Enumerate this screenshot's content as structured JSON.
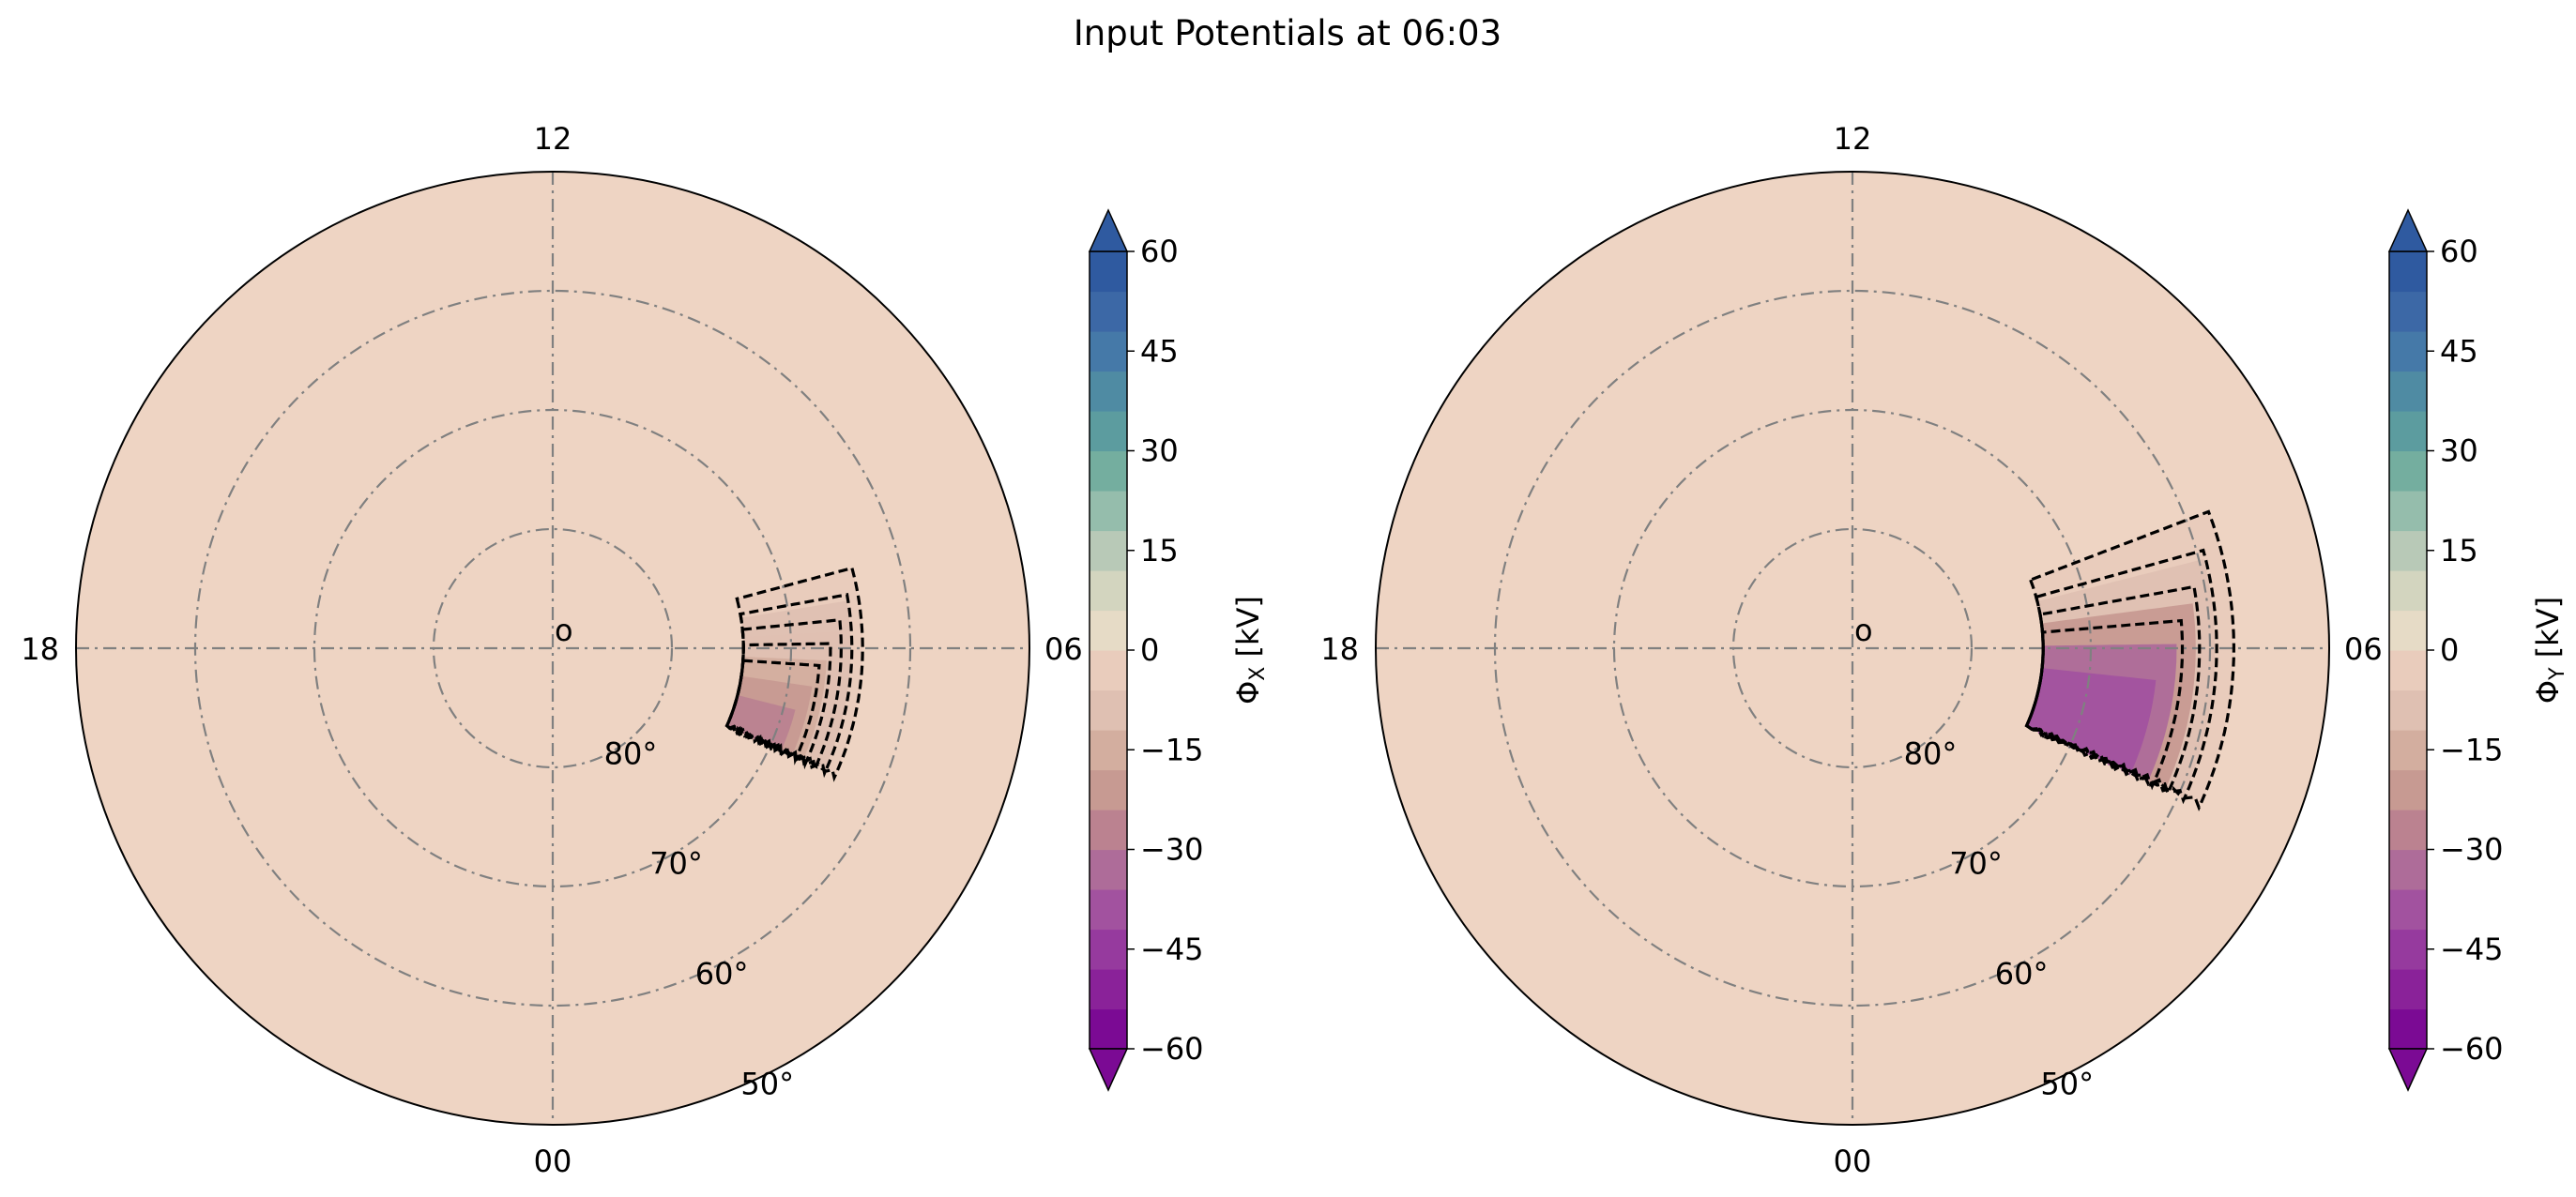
{
  "figure": {
    "title": "Input Potentials at 06:03"
  },
  "colors": {
    "background_potential": "#eed4c3",
    "cmap_negative": [
      "#7b0a94",
      "#8a2299",
      "#963a9e",
      "#a2529f",
      "#ae6c99",
      "#bb8290",
      "#c79a92",
      "#d3ae9f",
      "#dfc0b2",
      "#e9ccbc"
    ],
    "cmap_positive": [
      "#e6dbc6",
      "#d3d5bf",
      "#b8c9b7",
      "#95bdac",
      "#74ae9f",
      "#5c9c9f",
      "#4f8ba3",
      "#4579a8",
      "#3c68a6",
      "#2f5aa0"
    ]
  },
  "chart_data": [
    {
      "type": "polar-contour",
      "id": "left",
      "mlt_labels": [
        "12",
        "18",
        "06",
        "00"
      ],
      "colat_labels": [
        "80°",
        "70°",
        "60°",
        "50°"
      ],
      "lat_rings": [
        80,
        70,
        60,
        50
      ],
      "lat_min": 50,
      "pole_marker": "o",
      "colorbar": {
        "label": "Φ_X [kV]",
        "label_main": "Φ",
        "label_sub": "X",
        "label_unit": " [kV]",
        "range": [
          -60,
          60
        ],
        "step": 5,
        "ticks": [
          "60",
          "45",
          "30",
          "15",
          "0",
          "−15",
          "−30",
          "−45",
          "−60"
        ],
        "extend": "both"
      },
      "contour_levels_kV": [
        -5,
        -10,
        -15,
        -20,
        -25
      ],
      "region": {
        "mlt_range": [
          17.0,
          19.6
        ],
        "lat_range": [
          64,
          74
        ],
        "min_potential_kV": -25
      }
    },
    {
      "type": "polar-contour",
      "id": "right",
      "mlt_labels": [
        "12",
        "18",
        "06",
        "00"
      ],
      "colat_labels": [
        "80°",
        "70°",
        "60°",
        "50°"
      ],
      "lat_rings": [
        80,
        70,
        60,
        50
      ],
      "lat_min": 50,
      "pole_marker": "o",
      "colorbar": {
        "label": "Φ_Y [kV]",
        "label_main": "Φ",
        "label_sub": "Y",
        "label_unit": " [kV]",
        "range": [
          -60,
          60
        ],
        "step": 5,
        "ticks": [
          "60",
          "45",
          "30",
          "15",
          "0",
          "−15",
          "−30",
          "−45",
          "−60"
        ],
        "extend": "both"
      },
      "contour_levels_kV": [
        -10,
        -20,
        -30,
        -40
      ],
      "region": {
        "mlt_range": [
          16.6,
          19.6
        ],
        "lat_range": [
          58,
          74
        ],
        "min_potential_kV": -45
      }
    }
  ]
}
